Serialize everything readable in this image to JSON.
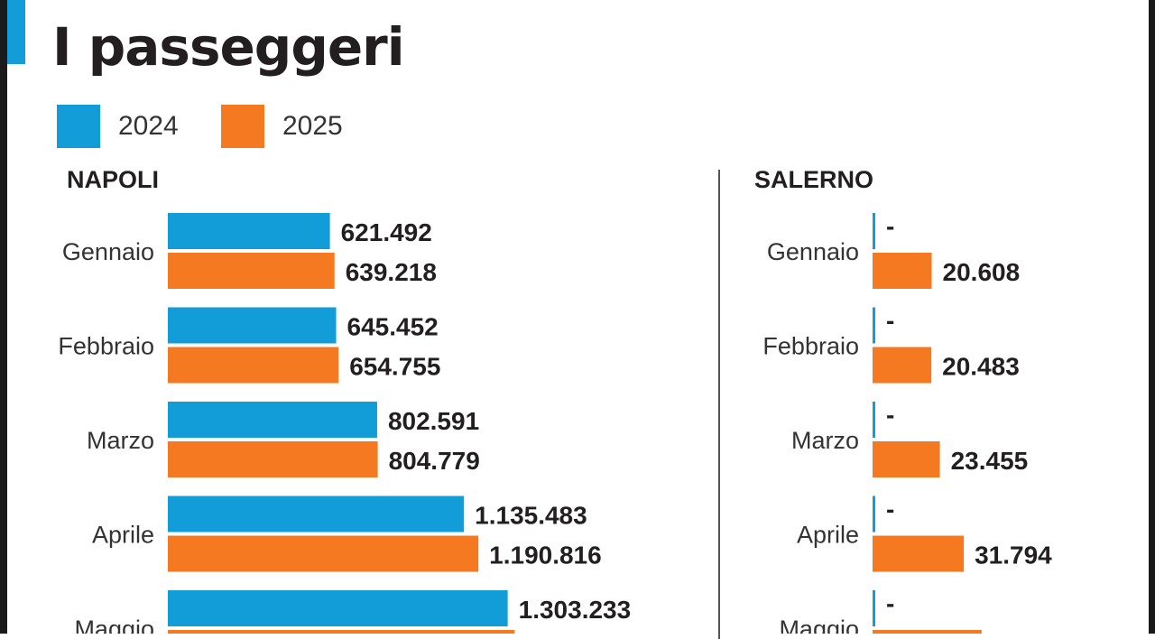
{
  "title": "I passeggeri",
  "colors": {
    "2024": "#129dd8",
    "2025": "#f47920",
    "accent": "#129dd8"
  },
  "legend": [
    {
      "label": "2024",
      "color": "#129dd8"
    },
    {
      "label": "2025",
      "color": "#f47920"
    }
  ],
  "chart_data": [
    {
      "type": "bar",
      "orientation": "horizontal",
      "title": "NAPOLI",
      "categories": [
        "Gennaio",
        "Febbraio",
        "Marzo",
        "Aprile",
        "Maggio"
      ],
      "series": [
        {
          "name": "2024",
          "values": [
            621492,
            645452,
            802591,
            1135483,
            1303233
          ],
          "labels": [
            "621.492",
            "645.452",
            "802.591",
            "1.135.483",
            "1.303.233"
          ]
        },
        {
          "name": "2025",
          "values": [
            639218,
            654755,
            804779,
            1190816,
            1330000
          ],
          "labels": [
            "639.218",
            "654.755",
            "804.779",
            "1.190.816",
            null
          ]
        }
      ],
      "grid": false
    },
    {
      "type": "bar",
      "orientation": "horizontal",
      "title": "SALERNO",
      "categories": [
        "Gennaio",
        "Febbraio",
        "Marzo",
        "Aprile",
        "Maggio"
      ],
      "series": [
        {
          "name": "2024",
          "values": [
            0,
            0,
            0,
            0,
            0
          ],
          "labels": [
            "-",
            "-",
            "-",
            "-",
            "-"
          ]
        },
        {
          "name": "2025",
          "values": [
            20608,
            20483,
            23455,
            31794,
            38000
          ],
          "labels": [
            "20.608",
            "20.483",
            "23.455",
            "31.794",
            null
          ]
        }
      ],
      "grid": false
    }
  ]
}
